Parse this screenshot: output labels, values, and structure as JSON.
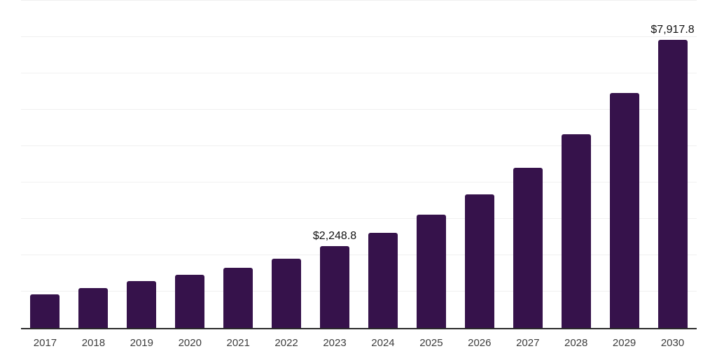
{
  "chart_data": {
    "type": "bar",
    "title": "",
    "xlabel": "",
    "ylabel": "",
    "categories": [
      "2017",
      "2018",
      "2019",
      "2020",
      "2021",
      "2022",
      "2023",
      "2024",
      "2025",
      "2026",
      "2027",
      "2028",
      "2029",
      "2030"
    ],
    "values": [
      920,
      1100,
      1280,
      1455,
      1660,
      1910,
      2248.8,
      2620,
      3120,
      3680,
      4400,
      5330,
      6465,
      7917.8
    ],
    "annotations": [
      {
        "category": "2023",
        "text": "$2,248.8"
      },
      {
        "category": "2030",
        "text": "$7,917.8"
      }
    ],
    "ylim": [
      0,
      9000
    ],
    "gridline_step": 1000,
    "grid": "horizontal-only",
    "legend": "none",
    "y_axis_labels_shown": false,
    "colors": {
      "bar": "#36124B",
      "axis_line": "#2b2b2b",
      "gridline": "#f0f0f0",
      "value_label": "#111111",
      "tick_label": "#3d3d3d",
      "background": "#ffffff"
    }
  }
}
